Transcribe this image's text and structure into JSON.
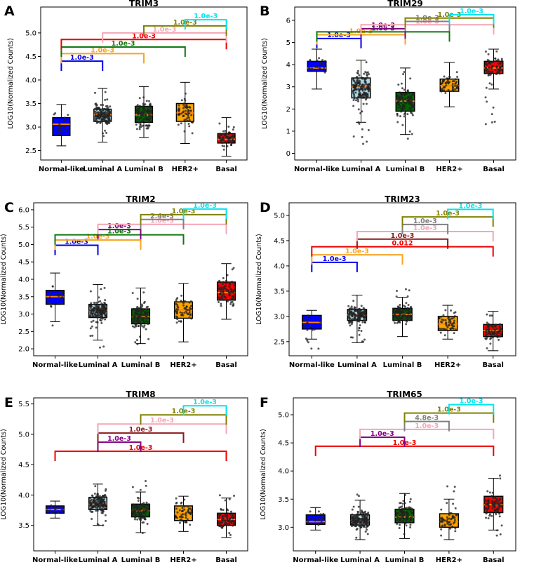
{
  "chart_data": [
    {
      "panel": "A",
      "type": "box",
      "title": "TRIM3",
      "ylabel": "LOG10(Normalized Counts)",
      "categories": [
        "Normal-like",
        "Luminal A",
        "Luminal B",
        "HER2+",
        "Basal"
      ],
      "ylim": [
        2.3,
        5.55
      ],
      "yticks": [
        2.5,
        3.0,
        3.5,
        4.0,
        4.5,
        5.0
      ],
      "boxes": [
        {
          "min": 2.6,
          "q1": 2.82,
          "median": 3.06,
          "q3": 3.2,
          "max": 3.48,
          "n": 22,
          "low": 2.75,
          "high": 3.3
        },
        {
          "min": 2.68,
          "q1": 3.12,
          "median": 3.26,
          "q3": 3.38,
          "max": 3.82,
          "n": 160,
          "low": 2.8,
          "high": 3.75
        },
        {
          "min": 2.78,
          "q1": 3.1,
          "median": 3.26,
          "q3": 3.44,
          "max": 3.86,
          "n": 110,
          "low": 2.9,
          "high": 3.75
        },
        {
          "min": 2.65,
          "q1": 3.12,
          "median": 3.3,
          "q3": 3.5,
          "max": 3.95,
          "n": 60,
          "low": 2.85,
          "high": 3.9
        },
        {
          "min": 2.38,
          "q1": 2.66,
          "median": 2.74,
          "q3": 2.86,
          "max": 3.2,
          "n": 80,
          "low": 2.45,
          "high": 3.1
        }
      ],
      "comparisons": [
        {
          "a": 0,
          "b": 1,
          "y": 4.4,
          "label": "1.0e-3",
          "color": "#0000ee"
        },
        {
          "a": 0,
          "b": 2,
          "y": 4.56,
          "label": "1.0e-3",
          "color": "#f5a623"
        },
        {
          "a": 0,
          "b": 3,
          "y": 4.7,
          "label": "1.0e-3",
          "color": "#117711"
        },
        {
          "a": 0,
          "b": 4,
          "y": 4.86,
          "label": "1.0e-3",
          "color": "#ee0000"
        },
        {
          "a": 1,
          "b": 4,
          "y": 5.0,
          "label": "1.0e-3",
          "color": "#f4a6b6"
        },
        {
          "a": 2,
          "b": 4,
          "y": 5.15,
          "label": "1.0e-3",
          "color": "#808000"
        },
        {
          "a": 3,
          "b": 4,
          "y": 5.28,
          "label": "1.0e-3",
          "color": "#00e5ee"
        }
      ]
    },
    {
      "panel": "B",
      "type": "box",
      "title": "TRIM29",
      "ylabel": "LOG10(Normalized Counts)",
      "categories": [
        "Normal-like",
        "Luminal A",
        "Luminal B",
        "HER2+",
        "Basal"
      ],
      "ylim": [
        -0.3,
        6.6
      ],
      "yticks": [
        0,
        1,
        2,
        3,
        4,
        5,
        6
      ],
      "boxes": [
        {
          "min": 2.9,
          "q1": 3.7,
          "median": 3.85,
          "q3": 4.15,
          "max": 4.7,
          "n": 22,
          "low": 3.2,
          "high": 4.6
        },
        {
          "min": 1.4,
          "q1": 2.5,
          "median": 3.0,
          "q3": 3.4,
          "max": 4.2,
          "n": 170,
          "low": 0.2,
          "high": 4.15
        },
        {
          "min": 0.85,
          "q1": 1.9,
          "median": 2.35,
          "q3": 2.75,
          "max": 3.85,
          "n": 115,
          "low": 0.5,
          "high": 3.8
        },
        {
          "min": 2.1,
          "q1": 2.8,
          "median": 3.05,
          "q3": 3.35,
          "max": 4.1,
          "n": 55,
          "low": 2.3,
          "high": 4.0
        },
        {
          "min": 2.9,
          "q1": 3.6,
          "median": 3.85,
          "q3": 4.15,
          "max": 4.7,
          "n": 85,
          "low": 0.65,
          "high": 4.7
        }
      ],
      "comparisons": [
        {
          "a": 0,
          "b": 1,
          "y": 5.18,
          "label": "1.0e-3",
          "color": "#0000ee"
        },
        {
          "a": 0,
          "b": 2,
          "y": 5.35,
          "label": "1.0e-3",
          "color": "#f5a623"
        },
        {
          "a": 0,
          "b": 3,
          "y": 5.48,
          "label": "1.0e-3",
          "color": "#117711"
        },
        {
          "a": 1,
          "b": 2,
          "y": 5.62,
          "label": "1.0e-3",
          "color": "#800080"
        },
        {
          "a": 1,
          "b": 4,
          "y": 5.8,
          "label": "1.0e-3",
          "color": "#f4a6b6"
        },
        {
          "a": 2,
          "b": 3,
          "y": 5.95,
          "label": "1.0e-3",
          "color": "#808080"
        },
        {
          "a": 2,
          "b": 4,
          "y": 6.1,
          "label": "1.0e-3",
          "color": "#808000"
        },
        {
          "a": 3,
          "b": 4,
          "y": 6.25,
          "label": "1.0e-3",
          "color": "#00e5ee"
        }
      ]
    },
    {
      "panel": "C",
      "type": "box",
      "title": "TRIM2",
      "ylabel": "LOG10(Normalized Counts)",
      "categories": [
        "Normal-like",
        "Luminal A",
        "Luminal B",
        "HER2+",
        "Basal"
      ],
      "ylim": [
        1.8,
        6.2
      ],
      "yticks": [
        2.0,
        2.5,
        3.0,
        3.5,
        4.0,
        4.5,
        5.0,
        5.5,
        6.0
      ],
      "boxes": [
        {
          "min": 2.78,
          "q1": 3.28,
          "median": 3.5,
          "q3": 3.68,
          "max": 4.18,
          "n": 22,
          "low": 2.55,
          "high": 4.1
        },
        {
          "min": 2.25,
          "q1": 2.9,
          "median": 3.1,
          "q3": 3.28,
          "max": 3.85,
          "n": 170,
          "low": 1.95,
          "high": 3.8
        },
        {
          "min": 2.15,
          "q1": 2.72,
          "median": 2.92,
          "q3": 3.15,
          "max": 3.75,
          "n": 120,
          "low": 2.1,
          "high": 3.7
        },
        {
          "min": 2.2,
          "q1": 2.88,
          "median": 3.12,
          "q3": 3.35,
          "max": 3.88,
          "n": 55,
          "low": 2.05,
          "high": 3.85
        },
        {
          "min": 2.85,
          "q1": 3.4,
          "median": 3.62,
          "q3": 3.92,
          "max": 4.45,
          "n": 85,
          "low": 2.6,
          "high": 4.4
        }
      ],
      "comparisons": [
        {
          "a": 0,
          "b": 1,
          "y": 4.98,
          "label": "1.0e-3",
          "color": "#0000ee"
        },
        {
          "a": 0,
          "b": 2,
          "y": 5.13,
          "label": "1.0e-3",
          "color": "#f5a623"
        },
        {
          "a": 0,
          "b": 3,
          "y": 5.28,
          "label": "1.0e-3",
          "color": "#117711"
        },
        {
          "a": 1,
          "b": 2,
          "y": 5.43,
          "label": "1.0e-3",
          "color": "#800080"
        },
        {
          "a": 1,
          "b": 4,
          "y": 5.58,
          "label": "1.0e-3",
          "color": "#f4a6b6"
        },
        {
          "a": 2,
          "b": 3,
          "y": 5.72,
          "label": "2.4e-3",
          "color": "#808080"
        },
        {
          "a": 2,
          "b": 4,
          "y": 5.86,
          "label": "1.0e-3",
          "color": "#808000"
        },
        {
          "a": 3,
          "b": 4,
          "y": 6.02,
          "label": "1.0e-3",
          "color": "#00e5ee"
        }
      ]
    },
    {
      "panel": "D",
      "type": "box",
      "title": "TRIM23",
      "ylabel": "LOG10(Normalized Counts)",
      "categories": [
        "Normal-like",
        "Luminal A",
        "Luminal B",
        "HER2+",
        "Basal"
      ],
      "ylim": [
        2.22,
        5.25
      ],
      "yticks": [
        2.5,
        3.0,
        3.5,
        4.0,
        4.5,
        5.0
      ],
      "boxes": [
        {
          "min": 2.55,
          "q1": 2.75,
          "median": 2.88,
          "q3": 3.02,
          "max": 3.12,
          "n": 20,
          "low": 2.3,
          "high": 3.1
        },
        {
          "min": 2.48,
          "q1": 2.92,
          "median": 3.03,
          "q3": 3.14,
          "max": 3.42,
          "n": 165,
          "low": 2.45,
          "high": 3.35
        },
        {
          "min": 2.6,
          "q1": 2.92,
          "median": 3.04,
          "q3": 3.16,
          "max": 3.38,
          "n": 110,
          "low": 2.55,
          "high": 3.6
        },
        {
          "min": 2.55,
          "q1": 2.72,
          "median": 2.85,
          "q3": 3.0,
          "max": 3.22,
          "n": 55,
          "low": 2.55,
          "high": 3.2
        },
        {
          "min": 2.32,
          "q1": 2.6,
          "median": 2.72,
          "q3": 2.84,
          "max": 3.1,
          "n": 80,
          "low": 2.35,
          "high": 3.05
        }
      ],
      "comparisons": [
        {
          "a": 0,
          "b": 1,
          "y": 4.07,
          "label": "1.0e-3",
          "color": "#0000ee"
        },
        {
          "a": 0,
          "b": 2,
          "y": 4.22,
          "label": "1.0e-3",
          "color": "#f5a623"
        },
        {
          "a": 0,
          "b": 4,
          "y": 4.38,
          "label": "0.012",
          "color": "#ee0000"
        },
        {
          "a": 1,
          "b": 3,
          "y": 4.53,
          "label": "1.0e-3",
          "color": "#8b1a1a"
        },
        {
          "a": 1,
          "b": 4,
          "y": 4.68,
          "label": "1.0e-3",
          "color": "#f4a6b6"
        },
        {
          "a": 2,
          "b": 3,
          "y": 4.82,
          "label": "1.0e-3",
          "color": "#808080"
        },
        {
          "a": 2,
          "b": 4,
          "y": 4.97,
          "label": "1.0e-3",
          "color": "#808000"
        },
        {
          "a": 3,
          "b": 4,
          "y": 5.12,
          "label": "1.0e-3",
          "color": "#00e5ee"
        }
      ]
    },
    {
      "panel": "E",
      "type": "box",
      "title": "TRIM8",
      "ylabel": "LOG10(Normalized Counts)",
      "categories": [
        "Normal-like",
        "Luminal A",
        "Luminal B",
        "HER2+",
        "Basal"
      ],
      "ylim": [
        3.08,
        5.6
      ],
      "yticks": [
        3.5,
        4.0,
        4.5,
        5.0,
        5.5
      ],
      "boxes": [
        {
          "min": 3.62,
          "q1": 3.7,
          "median": 3.76,
          "q3": 3.82,
          "max": 3.9,
          "n": 20,
          "low": 3.5,
          "high": 3.95
        },
        {
          "min": 3.5,
          "q1": 3.76,
          "median": 3.85,
          "q3": 3.96,
          "max": 4.18,
          "n": 165,
          "low": 3.5,
          "high": 4.15
        },
        {
          "min": 3.38,
          "q1": 3.64,
          "median": 3.74,
          "q3": 3.85,
          "max": 4.05,
          "n": 115,
          "low": 3.35,
          "high": 4.25
        },
        {
          "min": 3.4,
          "q1": 3.58,
          "median": 3.69,
          "q3": 3.82,
          "max": 3.98,
          "n": 55,
          "low": 3.4,
          "high": 3.98
        },
        {
          "min": 3.3,
          "q1": 3.5,
          "median": 3.6,
          "q3": 3.7,
          "max": 3.95,
          "n": 85,
          "low": 3.18,
          "high": 4.1
        }
      ],
      "comparisons": [
        {
          "a": 0,
          "b": 4,
          "y": 4.72,
          "label": "1.0e-3",
          "color": "#ee0000"
        },
        {
          "a": 1,
          "b": 2,
          "y": 4.87,
          "label": "1.0e-3",
          "color": "#800080"
        },
        {
          "a": 1,
          "b": 3,
          "y": 5.02,
          "label": "1.0e-3",
          "color": "#8b1a1a"
        },
        {
          "a": 1,
          "b": 4,
          "y": 5.17,
          "label": "1.0e-3",
          "color": "#f4a6b6"
        },
        {
          "a": 2,
          "b": 4,
          "y": 5.32,
          "label": "1.0e-3",
          "color": "#808000"
        },
        {
          "a": 3,
          "b": 4,
          "y": 5.47,
          "label": "1.0e-3",
          "color": "#00e5ee"
        }
      ]
    },
    {
      "panel": "F",
      "type": "box",
      "title": "TRIM65",
      "ylabel": "LOG10(Normalized Counts)",
      "categories": [
        "Normal-like",
        "Luminal A",
        "Luminal B",
        "HER2+",
        "Basal"
      ],
      "ylim": [
        2.58,
        5.3
      ],
      "yticks": [
        3.0,
        3.5,
        4.0,
        4.5,
        5.0
      ],
      "boxes": [
        {
          "min": 2.95,
          "q1": 3.05,
          "median": 3.1,
          "q3": 3.22,
          "max": 3.35,
          "n": 20,
          "low": 2.95,
          "high": 3.3
        },
        {
          "min": 2.78,
          "q1": 3.04,
          "median": 3.12,
          "q3": 3.22,
          "max": 3.48,
          "n": 170,
          "low": 2.78,
          "high": 3.6
        },
        {
          "min": 2.8,
          "q1": 3.08,
          "median": 3.18,
          "q3": 3.32,
          "max": 3.6,
          "n": 110,
          "low": 2.85,
          "high": 3.65
        },
        {
          "min": 2.78,
          "q1": 3.0,
          "median": 3.1,
          "q3": 3.24,
          "max": 3.5,
          "n": 55,
          "low": 2.8,
          "high": 3.85
        },
        {
          "min": 2.95,
          "q1": 3.26,
          "median": 3.4,
          "q3": 3.55,
          "max": 3.87,
          "n": 85,
          "low": 2.7,
          "high": 3.98
        }
      ],
      "comparisons": [
        {
          "a": 0,
          "b": 4,
          "y": 4.44,
          "label": "1.0e-3",
          "color": "#ee0000"
        },
        {
          "a": 1,
          "b": 2,
          "y": 4.6,
          "label": "1.0e-3",
          "color": "#800080"
        },
        {
          "a": 1,
          "b": 4,
          "y": 4.74,
          "label": "1.0e-3",
          "color": "#f4a6b6"
        },
        {
          "a": 2,
          "b": 3,
          "y": 4.88,
          "label": "4.8e-3",
          "color": "#808080"
        },
        {
          "a": 2,
          "b": 4,
          "y": 5.03,
          "label": "1.0e-3",
          "color": "#808000"
        },
        {
          "a": 3,
          "b": 4,
          "y": 5.18,
          "label": "1.0e-3",
          "color": "#00e5ee"
        }
      ]
    }
  ],
  "group_colors": [
    "#0000ff",
    "#add8e6",
    "#006400",
    "#ffa500",
    "#ff0000"
  ],
  "median_color": "#ff7f0e",
  "point_color": "#222222"
}
